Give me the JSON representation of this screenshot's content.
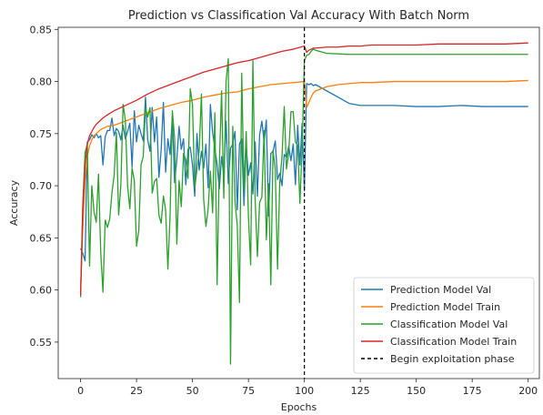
{
  "chart_data": {
    "type": "line",
    "title": "Prediction vs Classification Val Accuracy With Batch Norm",
    "xlabel": "Epochs",
    "ylabel": "Accuracy",
    "xlim": [
      -10,
      205
    ],
    "ylim": [
      0.515,
      0.852
    ],
    "xticks": [
      0,
      25,
      50,
      75,
      100,
      125,
      150,
      175,
      200
    ],
    "yticks": [
      0.55,
      0.6,
      0.65,
      0.7,
      0.75,
      0.8,
      0.85
    ],
    "ytick_labels": [
      "0.55",
      "0.60",
      "0.65",
      "0.70",
      "0.75",
      "0.80",
      "0.85"
    ],
    "legend_position": "lower-right",
    "grid": false,
    "series": [
      {
        "name": "Prediction Model Val",
        "color": "#1f77b4",
        "x": [
          0,
          1,
          2,
          3,
          4,
          5,
          6,
          7,
          8,
          9,
          10,
          11,
          12,
          13,
          14,
          15,
          16,
          17,
          18,
          19,
          20,
          21,
          22,
          23,
          24,
          25,
          26,
          27,
          28,
          29,
          30,
          31,
          32,
          33,
          34,
          35,
          36,
          37,
          38,
          39,
          40,
          41,
          42,
          43,
          44,
          45,
          46,
          47,
          48,
          49,
          50,
          51,
          52,
          53,
          54,
          55,
          56,
          57,
          58,
          59,
          60,
          61,
          62,
          63,
          64,
          65,
          66,
          67,
          68,
          69,
          70,
          71,
          72,
          73,
          74,
          75,
          76,
          77,
          78,
          79,
          80,
          81,
          82,
          83,
          84,
          85,
          86,
          87,
          88,
          89,
          90,
          91,
          92,
          93,
          94,
          95,
          96,
          97,
          98,
          99,
          100,
          101,
          102,
          103,
          104,
          105,
          110,
          115,
          120,
          125,
          130,
          140,
          150,
          160,
          170,
          180,
          190,
          200
        ],
        "y": [
          0.64,
          0.635,
          0.628,
          0.742,
          0.744,
          0.749,
          0.746,
          0.75,
          0.746,
          0.748,
          0.72,
          0.747,
          0.753,
          0.753,
          0.765,
          0.748,
          0.755,
          0.752,
          0.744,
          0.758,
          0.745,
          0.752,
          0.76,
          0.718,
          0.772,
          0.742,
          0.758,
          0.75,
          0.743,
          0.785,
          0.744,
          0.733,
          0.775,
          0.742,
          0.766,
          0.708,
          0.734,
          0.78,
          0.713,
          0.745,
          0.73,
          0.767,
          0.703,
          0.725,
          0.757,
          0.735,
          0.745,
          0.701,
          0.735,
          0.737,
          0.72,
          0.69,
          0.75,
          0.715,
          0.733,
          0.717,
          0.74,
          0.698,
          0.778,
          0.751,
          0.736,
          0.72,
          0.697,
          0.728,
          0.71,
          0.762,
          0.702,
          0.736,
          0.74,
          0.752,
          0.677,
          0.74,
          0.745,
          0.681,
          0.739,
          0.71,
          0.722,
          0.692,
          0.742,
          0.69,
          0.749,
          0.762,
          0.742,
          0.763,
          0.671,
          0.731,
          0.733,
          0.743,
          0.706,
          0.712,
          0.7,
          0.73,
          0.727,
          0.738,
          0.724,
          0.74,
          0.701,
          0.758,
          0.72,
          0.76,
          0.695,
          0.798,
          0.797,
          0.798,
          0.796,
          0.797,
          0.791,
          0.785,
          0.779,
          0.777,
          0.777,
          0.777,
          0.776,
          0.776,
          0.777,
          0.776,
          0.776,
          0.776
        ]
      },
      {
        "name": "Prediction Model Train",
        "color": "#ff7f0e",
        "x": [
          0,
          1,
          2,
          3,
          4,
          5,
          6,
          7,
          8,
          9,
          10,
          12,
          15,
          20,
          25,
          30,
          35,
          40,
          45,
          50,
          55,
          60,
          65,
          70,
          75,
          80,
          85,
          90,
          95,
          100,
          101,
          102,
          103,
          104,
          105,
          110,
          115,
          120,
          125,
          130,
          140,
          150,
          160,
          170,
          180,
          190,
          200
        ],
        "y": [
          0.6,
          0.66,
          0.705,
          0.728,
          0.738,
          0.744,
          0.748,
          0.75,
          0.752,
          0.754,
          0.755,
          0.757,
          0.758,
          0.762,
          0.766,
          0.77,
          0.774,
          0.777,
          0.78,
          0.782,
          0.785,
          0.787,
          0.789,
          0.79,
          0.793,
          0.795,
          0.797,
          0.798,
          0.799,
          0.8,
          0.775,
          0.78,
          0.785,
          0.789,
          0.791,
          0.795,
          0.797,
          0.798,
          0.799,
          0.799,
          0.8,
          0.8,
          0.8,
          0.8,
          0.8,
          0.8,
          0.801
        ]
      },
      {
        "name": "Classification Model Val",
        "color": "#2ca02c",
        "x": [
          0,
          1,
          2,
          3,
          4,
          5,
          6,
          7,
          8,
          9,
          10,
          11,
          12,
          13,
          14,
          15,
          16,
          17,
          18,
          19,
          20,
          21,
          22,
          23,
          24,
          25,
          26,
          27,
          28,
          29,
          30,
          31,
          32,
          33,
          34,
          35,
          36,
          37,
          38,
          39,
          40,
          41,
          42,
          43,
          44,
          45,
          46,
          47,
          48,
          49,
          50,
          51,
          52,
          53,
          54,
          55,
          56,
          57,
          58,
          59,
          60,
          61,
          62,
          63,
          64,
          65,
          66,
          67,
          68,
          69,
          70,
          71,
          72,
          73,
          74,
          75,
          76,
          77,
          78,
          79,
          80,
          81,
          82,
          83,
          84,
          85,
          86,
          87,
          88,
          89,
          90,
          91,
          92,
          93,
          94,
          95,
          96,
          97,
          98,
          99,
          100,
          101,
          102,
          103,
          104,
          105,
          110,
          120,
          130,
          140,
          150,
          160,
          170,
          180,
          190,
          200
        ],
        "y": [
          0.593,
          0.683,
          0.732,
          0.74,
          0.623,
          0.7,
          0.675,
          0.665,
          0.711,
          0.636,
          0.598,
          0.667,
          0.66,
          0.668,
          0.693,
          0.71,
          0.751,
          0.672,
          0.701,
          0.778,
          0.763,
          0.7,
          0.678,
          0.717,
          0.705,
          0.642,
          0.657,
          0.72,
          0.728,
          0.775,
          0.766,
          0.775,
          0.693,
          0.704,
          0.707,
          0.672,
          0.664,
          0.69,
          0.677,
          0.62,
          0.672,
          0.772,
          0.746,
          0.644,
          0.705,
          0.68,
          0.731,
          0.725,
          0.707,
          0.793,
          0.778,
          0.698,
          0.716,
          0.734,
          0.788,
          0.687,
          0.661,
          0.678,
          0.714,
          0.674,
          0.77,
          0.605,
          0.72,
          0.791,
          0.688,
          0.8,
          0.822,
          0.529,
          0.757,
          0.685,
          0.662,
          0.588,
          0.808,
          0.696,
          0.752,
          0.67,
          0.624,
          0.82,
          0.687,
          0.632,
          0.684,
          0.689,
          0.753,
          0.648,
          0.702,
          0.605,
          0.734,
          0.715,
          0.62,
          0.703,
          0.728,
          0.776,
          0.716,
          0.732,
          0.771,
          0.771,
          0.742,
          0.739,
          0.683,
          0.738,
          0.82,
          0.825,
          0.826,
          0.829,
          0.831,
          0.83,
          0.827,
          0.826,
          0.826,
          0.826,
          0.826,
          0.826,
          0.826,
          0.826,
          0.826,
          0.826
        ]
      },
      {
        "name": "Classification Model Train",
        "color": "#d62728",
        "x": [
          0,
          1,
          2,
          3,
          4,
          5,
          6,
          7,
          8,
          9,
          10,
          12,
          15,
          20,
          25,
          30,
          35,
          40,
          45,
          50,
          55,
          60,
          65,
          70,
          75,
          80,
          85,
          90,
          95,
          100,
          101,
          102,
          103,
          104,
          105,
          110,
          115,
          120,
          125,
          130,
          140,
          150,
          160,
          170,
          180,
          190,
          200
        ],
        "y": [
          0.595,
          0.68,
          0.72,
          0.74,
          0.748,
          0.752,
          0.756,
          0.759,
          0.761,
          0.763,
          0.765,
          0.768,
          0.772,
          0.777,
          0.782,
          0.788,
          0.793,
          0.797,
          0.801,
          0.805,
          0.809,
          0.812,
          0.815,
          0.818,
          0.82,
          0.823,
          0.826,
          0.829,
          0.831,
          0.834,
          0.828,
          0.83,
          0.831,
          0.832,
          0.832,
          0.833,
          0.833,
          0.834,
          0.834,
          0.835,
          0.835,
          0.835,
          0.836,
          0.836,
          0.836,
          0.836,
          0.837
        ]
      }
    ],
    "vline": {
      "name": "Begin exploitation phase",
      "x": 100,
      "color": "#000000",
      "style": "dashed"
    }
  }
}
